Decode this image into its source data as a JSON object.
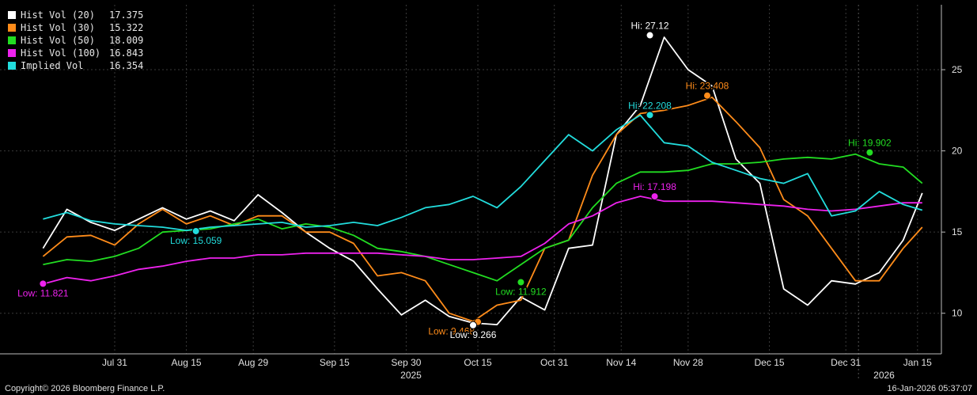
{
  "legend": [
    {
      "label": "Hist Vol (20)",
      "value": "17.375",
      "color": "#ffffff"
    },
    {
      "label": "Hist Vol (30)",
      "value": "15.322",
      "color": "#ff8c1a"
    },
    {
      "label": "Hist Vol (50)",
      "value": "18.009",
      "color": "#22dd22"
    },
    {
      "label": "Hist Vol (100)",
      "value": "16.843",
      "color": "#ee22ee"
    },
    {
      "label": "Implied Vol",
      "value": "16.354",
      "color": "#22dddd"
    }
  ],
  "footer": {
    "copyright": "Copyright© 2026 Bloomberg Finance L.P.",
    "timestamp": "16-Jan-2026 05:37:07"
  },
  "chart_data": {
    "type": "line",
    "ylim": [
      7.5,
      29
    ],
    "y_ticks": [
      10,
      15,
      20,
      25
    ],
    "x_ticks": [
      {
        "label": "Jul 31",
        "date": "2025-07-31"
      },
      {
        "label": "Aug 15",
        "date": "2025-08-15"
      },
      {
        "label": "Aug 29",
        "date": "2025-08-29"
      },
      {
        "label": "Sep 15",
        "date": "2025-09-15"
      },
      {
        "label": "Sep 30",
        "date": "2025-09-30"
      },
      {
        "label": "Oct 15",
        "date": "2025-10-15"
      },
      {
        "label": "Oct 31",
        "date": "2025-10-31"
      },
      {
        "label": "Nov 14",
        "date": "2025-11-14"
      },
      {
        "label": "Nov 28",
        "date": "2025-11-28"
      },
      {
        "label": "Dec 15",
        "date": "2025-12-15"
      },
      {
        "label": "Dec 31",
        "date": "2025-12-31"
      },
      {
        "label": "Jan 15",
        "date": "2026-01-15"
      }
    ],
    "year_labels": [
      {
        "label": "2025",
        "date": "2025-10-01"
      },
      {
        "label": "2026",
        "date": "2026-01-08"
      }
    ],
    "dates": [
      "2025-07-16",
      "2025-07-21",
      "2025-07-26",
      "2025-07-31",
      "2025-08-05",
      "2025-08-10",
      "2025-08-15",
      "2025-08-20",
      "2025-08-25",
      "2025-08-30",
      "2025-09-04",
      "2025-09-09",
      "2025-09-14",
      "2025-09-19",
      "2025-09-24",
      "2025-09-29",
      "2025-10-04",
      "2025-10-09",
      "2025-10-14",
      "2025-10-19",
      "2025-10-24",
      "2025-10-29",
      "2025-11-03",
      "2025-11-08",
      "2025-11-13",
      "2025-11-18",
      "2025-11-23",
      "2025-11-28",
      "2025-12-03",
      "2025-12-08",
      "2025-12-13",
      "2025-12-18",
      "2025-12-23",
      "2025-12-28",
      "2026-01-02",
      "2026-01-07",
      "2026-01-12",
      "2026-01-16"
    ],
    "series": [
      {
        "name": "Hist Vol (20)",
        "color": "#ffffff",
        "values": [
          14.0,
          16.4,
          15.6,
          15.1,
          15.8,
          16.5,
          15.8,
          16.3,
          15.7,
          17.3,
          16.2,
          15.0,
          14.0,
          13.2,
          11.5,
          9.9,
          10.8,
          9.8,
          9.4,
          9.3,
          11.0,
          10.2,
          14.0,
          14.2,
          21.0,
          22.8,
          27.0,
          25.0,
          24.0,
          19.5,
          18.0,
          11.5,
          10.5,
          12.0,
          11.8,
          12.5,
          14.5,
          17.4
        ]
      },
      {
        "name": "Hist Vol (30)",
        "color": "#ff8c1a",
        "values": [
          13.5,
          14.7,
          14.8,
          14.2,
          15.5,
          16.4,
          15.5,
          16.0,
          15.4,
          16.0,
          16.0,
          15.0,
          15.0,
          14.3,
          12.3,
          12.5,
          12.0,
          10.0,
          9.5,
          10.5,
          10.8,
          14.0,
          14.5,
          18.5,
          21.0,
          22.3,
          22.5,
          22.8,
          23.3,
          21.8,
          20.2,
          17.0,
          16.0,
          14.0,
          12.0,
          12.0,
          14.0,
          15.3
        ]
      },
      {
        "name": "Hist Vol (50)",
        "color": "#22dd22",
        "values": [
          13.0,
          13.3,
          13.2,
          13.5,
          14.0,
          15.0,
          15.1,
          15.2,
          15.5,
          15.8,
          15.2,
          15.5,
          15.3,
          14.8,
          14.0,
          13.8,
          13.5,
          13.0,
          12.5,
          12.0,
          13.0,
          14.0,
          14.5,
          16.5,
          18.0,
          18.7,
          18.7,
          18.8,
          19.2,
          19.2,
          19.3,
          19.5,
          19.6,
          19.5,
          19.8,
          19.2,
          19.0,
          18.0
        ]
      },
      {
        "name": "Hist Vol (100)",
        "color": "#ee22ee",
        "values": [
          11.8,
          12.2,
          12.0,
          12.3,
          12.7,
          12.9,
          13.2,
          13.4,
          13.4,
          13.6,
          13.6,
          13.7,
          13.7,
          13.7,
          13.7,
          13.6,
          13.5,
          13.3,
          13.3,
          13.4,
          13.5,
          14.3,
          15.5,
          16.0,
          16.8,
          17.2,
          16.9,
          16.9,
          16.9,
          16.8,
          16.7,
          16.6,
          16.4,
          16.3,
          16.4,
          16.6,
          16.8,
          16.8
        ]
      },
      {
        "name": "Implied Vol",
        "color": "#22dddd",
        "values": [
          15.8,
          16.2,
          15.7,
          15.5,
          15.4,
          15.3,
          15.1,
          15.3,
          15.4,
          15.5,
          15.6,
          15.3,
          15.4,
          15.6,
          15.4,
          15.9,
          16.5,
          16.7,
          17.2,
          16.5,
          17.8,
          19.4,
          21.0,
          20.0,
          21.3,
          22.2,
          20.5,
          20.3,
          19.3,
          18.8,
          18.3,
          18.0,
          18.6,
          16.0,
          16.3,
          17.5,
          16.7,
          16.35
        ]
      }
    ],
    "annotations": [
      {
        "text": "Hi: 27.12",
        "date": "2025-11-20",
        "value": 27.12,
        "color": "#ffffff",
        "text_color": "#ffffff",
        "pos": "above"
      },
      {
        "text": "Hi: 23.408",
        "date": "2025-12-02",
        "value": 23.408,
        "color": "#ff8c1a",
        "text_color": "#ff8c1a",
        "pos": "above"
      },
      {
        "text": "Hi: 22.208",
        "date": "2025-11-20",
        "value": 22.208,
        "color": "#22dddd",
        "text_color": "#22dddd",
        "pos": "above"
      },
      {
        "text": "Hi: 19.902",
        "date": "2026-01-05",
        "value": 19.902,
        "color": "#22dd22",
        "text_color": "#22dd22",
        "pos": "above"
      },
      {
        "text": "Hi: 17.198",
        "date": "2025-11-21",
        "value": 17.198,
        "color": "#ee22ee",
        "text_color": "#ee22ee",
        "pos": "above"
      },
      {
        "text": "Low: 15.059",
        "date": "2025-08-17",
        "value": 15.059,
        "color": "#22dddd",
        "text_color": "#22dddd",
        "pos": "below"
      },
      {
        "text": "Low: 11.821",
        "date": "2025-07-16",
        "value": 11.821,
        "color": "#ee22ee",
        "text_color": "#ee22ee",
        "pos": "below"
      },
      {
        "text": "Low: 11.912",
        "date": "2025-10-24",
        "value": 11.912,
        "color": "#22dd22",
        "text_color": "#22dd22",
        "pos": "below"
      },
      {
        "text": "Low: 9.468",
        "date": "2025-10-15",
        "value": 9.468,
        "color": "#ff8c1a",
        "text_color": "#ff8c1a",
        "pos": "below-left"
      },
      {
        "text": "Low: 9.266",
        "date": "2025-10-14",
        "value": 9.266,
        "color": "#ffffff",
        "text_color": "#ffffff",
        "pos": "below"
      }
    ]
  }
}
